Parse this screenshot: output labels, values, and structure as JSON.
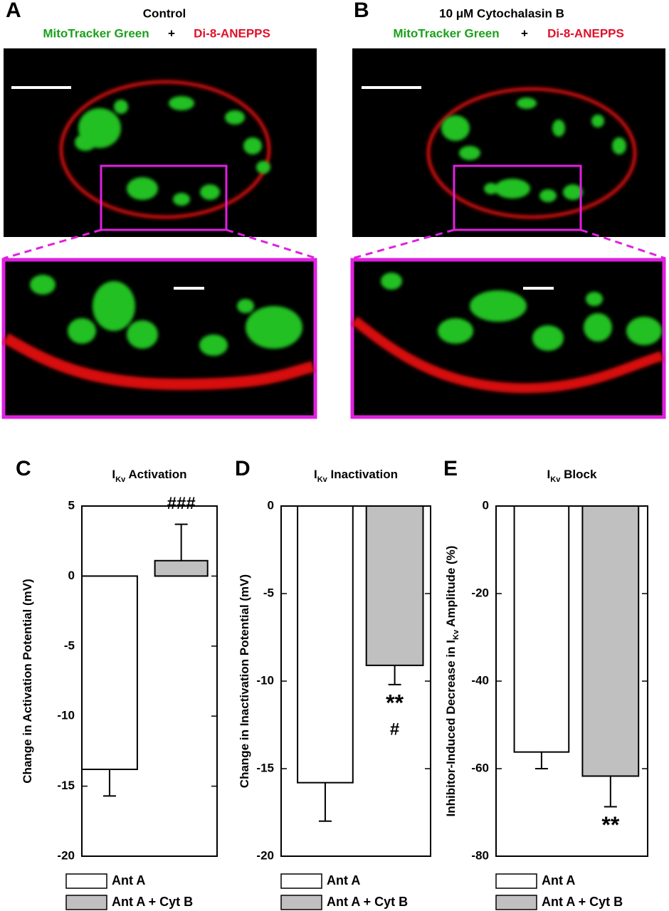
{
  "figure": {
    "panels": [
      {
        "label": "A",
        "title": "Control",
        "stain_1": "MitoTracker Green",
        "plus": "+",
        "stain_2": "Di-8-ANEPPS"
      },
      {
        "label": "B",
        "title": "10 μM Cytochalasin B",
        "stain_1": "MitoTracker Green",
        "plus": "+",
        "stain_2": "Di-8-ANEPPS"
      }
    ]
  },
  "chart_data": [
    {
      "type": "bar",
      "panel": "C",
      "title": [
        "I",
        "Kv",
        " Activation"
      ],
      "ylabel": [
        "Change in Activation Potential (mV)"
      ],
      "ylim": [
        -20,
        5
      ],
      "yticks": [
        -20,
        -15,
        -10,
        -5,
        0,
        5
      ],
      "series": [
        {
          "name": "Ant A",
          "color": "#ffffff",
          "values": [
            -13.8
          ],
          "errors": [
            1.9
          ]
        },
        {
          "name": "Ant A + Cyt B",
          "color": "#c0c0c0",
          "values": [
            1.1
          ],
          "errors": [
            2.6
          ]
        }
      ],
      "annotations": [
        "###"
      ]
    },
    {
      "type": "bar",
      "panel": "D",
      "title": [
        "I",
        "Kv",
        " Inactivation"
      ],
      "ylabel": [
        "Change in Inactivation Potential (mV)"
      ],
      "ylim": [
        -20,
        0
      ],
      "yticks": [
        -20,
        -15,
        -10,
        -5,
        0
      ],
      "series": [
        {
          "name": "Ant A",
          "color": "#ffffff",
          "values": [
            -15.8
          ],
          "errors": [
            2.2
          ]
        },
        {
          "name": "Ant A + Cyt B",
          "color": "#c0c0c0",
          "values": [
            -9.1
          ],
          "errors": [
            1.1
          ]
        }
      ],
      "annotations": [
        "**",
        "#"
      ]
    },
    {
      "type": "bar",
      "panel": "E",
      "title": [
        "I",
        "Kv",
        " Block"
      ],
      "ylabel": [
        "Inhibitor-Induced Decrease in I",
        "Kv",
        " Amplitude (%)"
      ],
      "ylim": [
        -80,
        0
      ],
      "yticks": [
        -80,
        -60,
        -40,
        -20,
        0
      ],
      "series": [
        {
          "name": "Ant A",
          "color": "#ffffff",
          "values": [
            -56.2
          ],
          "errors": [
            3.8
          ]
        },
        {
          "name": "Ant A + Cyt B",
          "color": "#c0c0c0",
          "values": [
            -61.7
          ],
          "errors": [
            7.0
          ]
        }
      ],
      "annotations": [
        "**"
      ]
    }
  ]
}
